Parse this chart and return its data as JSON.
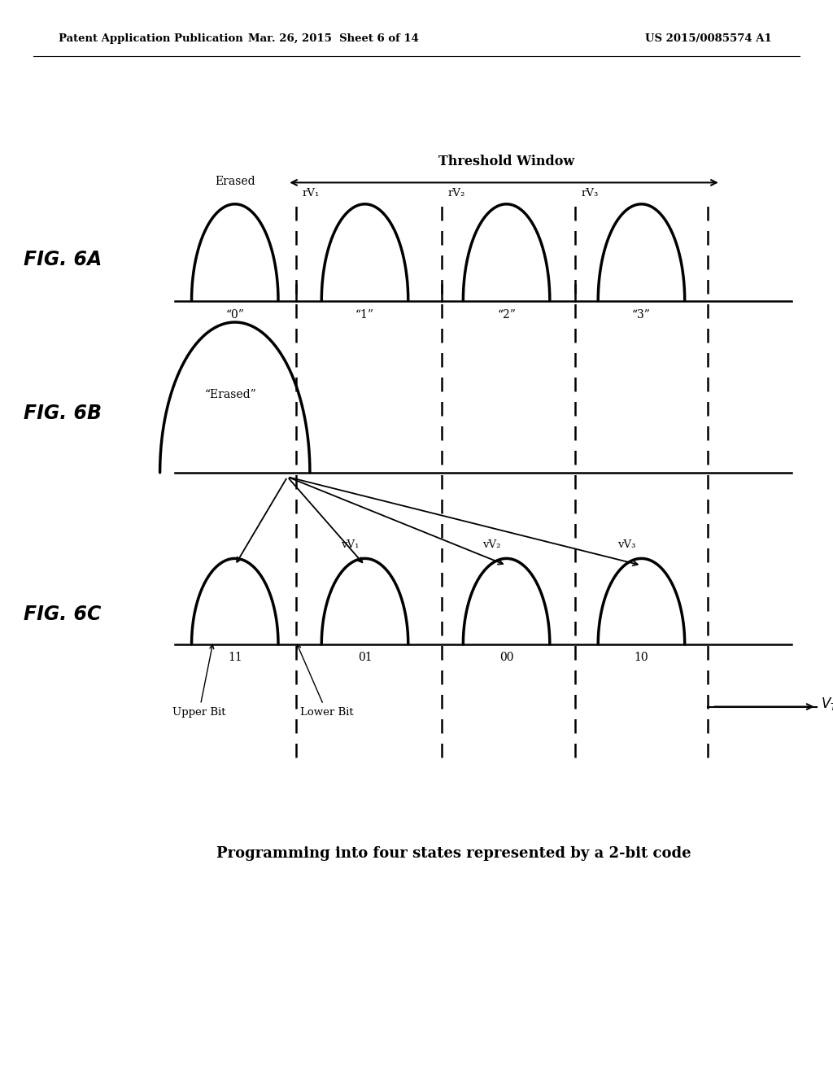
{
  "header_left": "Patent Application Publication",
  "header_mid": "Mar. 26, 2015  Sheet 6 of 14",
  "header_right": "US 2015/0085574 A1",
  "fig_label_6A": "FIG. 6A",
  "fig_label_6B": "FIG. 6B",
  "fig_label_6C": "FIG. 6C",
  "threshold_window_label": "Threshold Window",
  "caption": "Programming into four states represented by a 2-bit code",
  "colors": {
    "black": "#000000",
    "white": "#ffffff",
    "bg": "#ffffff"
  },
  "fig6A": {
    "erased_label": "Erased",
    "state_labels": [
      "“0”",
      "“1”",
      "“2”",
      "“3”"
    ],
    "rv_labels": [
      "rV₁",
      "rV₂",
      "rV₃"
    ]
  },
  "fig6B": {
    "erased_label": "“Erased”"
  },
  "fig6C": {
    "state_labels": [
      "11",
      "01",
      "00",
      "10"
    ],
    "vv_labels": [
      "vV₁",
      "vV₂",
      "vV₃"
    ],
    "upper_bit": "Upper Bit",
    "lower_bit": "Lower Bit"
  }
}
